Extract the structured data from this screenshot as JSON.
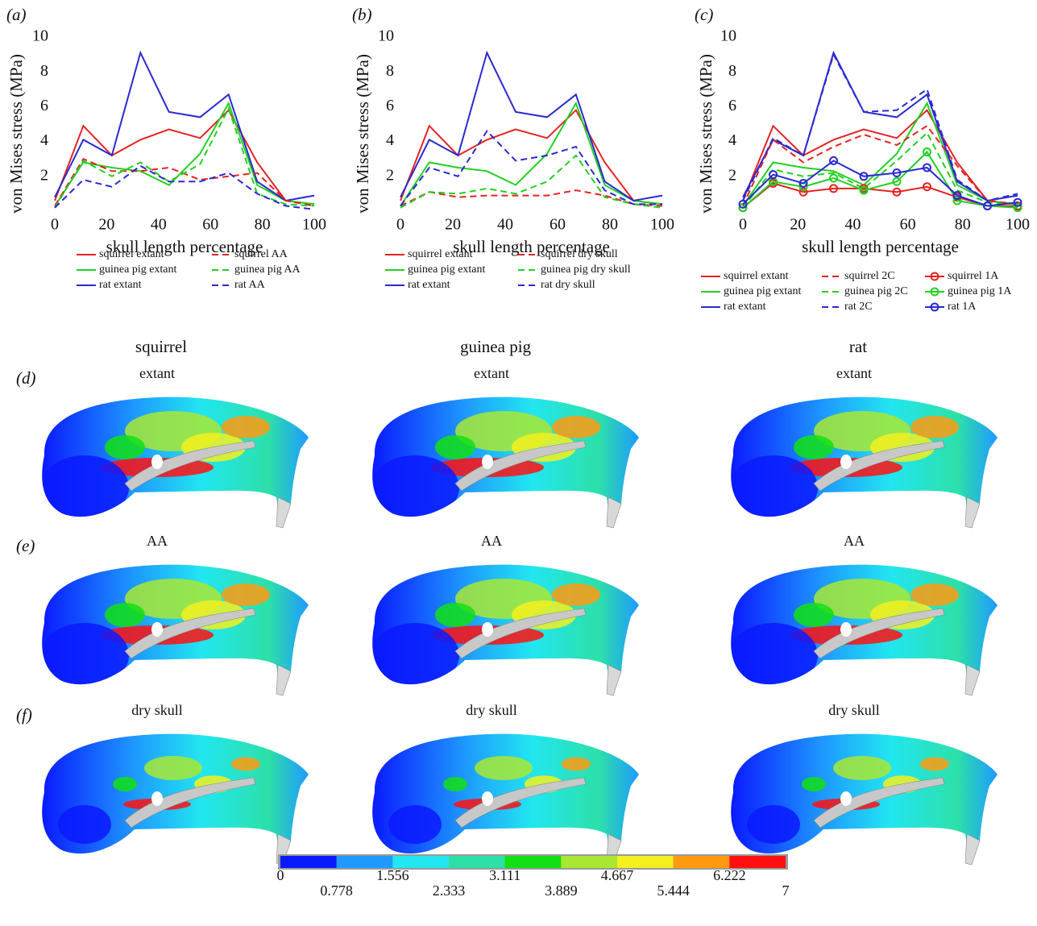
{
  "chart_data": [
    {
      "type": "line",
      "label": "(a)",
      "xlabel": "skull length percentage",
      "ylabel": "von Mises stress (MPa)",
      "x": [
        0,
        11,
        22,
        33,
        44,
        56,
        67,
        78,
        89,
        100
      ],
      "xlim": [
        0,
        100
      ],
      "xticks": [
        0,
        20,
        40,
        60,
        80,
        100
      ],
      "ylim": [
        0,
        10
      ],
      "yticks": [
        2,
        4,
        6,
        8,
        10
      ],
      "series": [
        {
          "name": "squirrel extant",
          "color": "#e52222",
          "line_style": "solid",
          "values": [
            0.6,
            4.9,
            3.2,
            4.1,
            4.7,
            4.2,
            5.8,
            2.8,
            0.6,
            0.4
          ]
        },
        {
          "name": "guinea pig extant",
          "color": "#22d022",
          "line_style": "solid",
          "values": [
            0.3,
            2.8,
            2.5,
            2.3,
            1.5,
            3.3,
            6.2,
            1.5,
            0.6,
            0.4
          ]
        },
        {
          "name": "rat extant",
          "color": "#2a2ad0",
          "line_style": "solid",
          "values": [
            0.8,
            4.1,
            3.2,
            9.1,
            5.7,
            5.4,
            6.7,
            1.7,
            0.6,
            0.9
          ]
        },
        {
          "name": "squirrel AA",
          "color": "#e52222",
          "line_style": "dashed",
          "values": [
            0.3,
            3.0,
            2.3,
            2.3,
            2.5,
            1.8,
            2.0,
            2.2,
            0.6,
            0.3
          ]
        },
        {
          "name": "guinea pig AA",
          "color": "#22d022",
          "line_style": "dashed",
          "values": [
            0.2,
            2.9,
            2.0,
            2.8,
            1.7,
            2.7,
            5.9,
            1.0,
            0.4,
            0.3
          ]
        },
        {
          "name": "rat AA",
          "color": "#2a2ad0",
          "line_style": "dashed",
          "values": [
            0.2,
            1.8,
            1.4,
            2.6,
            1.7,
            1.7,
            2.2,
            1.0,
            0.3,
            0.1
          ]
        }
      ]
    },
    {
      "type": "line",
      "label": "(b)",
      "xlabel": "skull length percentage",
      "ylabel": "von Mises stress (MPa)",
      "x": [
        0,
        11,
        22,
        33,
        44,
        56,
        67,
        78,
        89,
        100
      ],
      "xlim": [
        0,
        100
      ],
      "xticks": [
        0,
        20,
        40,
        60,
        80,
        100
      ],
      "ylim": [
        0,
        10
      ],
      "yticks": [
        2,
        4,
        6,
        8,
        10
      ],
      "series": [
        {
          "name": "squirrel extant",
          "color": "#e52222",
          "line_style": "solid",
          "values": [
            0.6,
            4.9,
            3.2,
            4.1,
            4.7,
            4.2,
            5.8,
            2.8,
            0.6,
            0.4
          ]
        },
        {
          "name": "guinea pig extant",
          "color": "#22d022",
          "line_style": "solid",
          "values": [
            0.3,
            2.8,
            2.5,
            2.3,
            1.5,
            3.3,
            6.2,
            1.5,
            0.6,
            0.4
          ]
        },
        {
          "name": "rat extant",
          "color": "#2a2ad0",
          "line_style": "solid",
          "values": [
            0.8,
            4.1,
            3.2,
            9.1,
            5.7,
            5.4,
            6.7,
            1.7,
            0.6,
            0.9
          ]
        },
        {
          "name": "squirrel dry skull",
          "color": "#e52222",
          "line_style": "dashed",
          "values": [
            0.3,
            1.1,
            0.8,
            0.9,
            0.9,
            0.9,
            1.2,
            0.9,
            0.4,
            0.3
          ]
        },
        {
          "name": "guinea pig dry skull",
          "color": "#22d022",
          "line_style": "dashed",
          "values": [
            0.2,
            1.1,
            1.0,
            1.3,
            1.0,
            1.7,
            3.2,
            0.8,
            0.4,
            0.2
          ]
        },
        {
          "name": "rat dry skull",
          "color": "#2a2ad0",
          "line_style": "dashed",
          "values": [
            0.3,
            2.5,
            2.0,
            4.6,
            2.9,
            3.2,
            3.7,
            1.2,
            0.4,
            0.4
          ]
        }
      ]
    },
    {
      "type": "line",
      "label": "(c)",
      "xlabel": "skull length percentage",
      "ylabel": "von Mises stress (MPa)",
      "x": [
        0,
        11,
        22,
        33,
        44,
        56,
        67,
        78,
        89,
        100
      ],
      "xlim": [
        0,
        100
      ],
      "xticks": [
        0,
        20,
        40,
        60,
        80,
        100
      ],
      "ylim": [
        0,
        10
      ],
      "yticks": [
        2,
        4,
        6,
        8,
        10
      ],
      "series": [
        {
          "name": "squirrel extant",
          "color": "#e52222",
          "line_style": "solid",
          "values": [
            0.6,
            4.9,
            3.2,
            4.1,
            4.7,
            4.2,
            5.8,
            2.8,
            0.6,
            0.4
          ]
        },
        {
          "name": "guinea pig extant",
          "color": "#22d022",
          "line_style": "solid",
          "values": [
            0.3,
            2.8,
            2.5,
            2.3,
            1.5,
            3.3,
            6.2,
            1.5,
            0.6,
            0.4
          ]
        },
        {
          "name": "rat extant",
          "color": "#2a2ad0",
          "line_style": "solid",
          "values": [
            0.8,
            4.1,
            3.2,
            9.1,
            5.7,
            5.4,
            6.7,
            1.7,
            0.6,
            0.9
          ]
        },
        {
          "name": "squirrel 2C",
          "color": "#e52222",
          "line_style": "dashed",
          "values": [
            0.3,
            4.1,
            2.8,
            3.7,
            4.4,
            3.8,
            4.9,
            2.6,
            0.6,
            0.4
          ]
        },
        {
          "name": "guinea pig 2C",
          "color": "#22d022",
          "line_style": "dashed",
          "values": [
            0.2,
            2.4,
            2.0,
            2.2,
            1.3,
            2.9,
            4.5,
            1.2,
            0.5,
            0.4
          ]
        },
        {
          "name": "rat 2C",
          "color": "#2a2ad0",
          "line_style": "dashed",
          "values": [
            0.6,
            4.2,
            3.2,
            9.0,
            5.7,
            5.8,
            7.0,
            1.8,
            0.6,
            1.0
          ]
        },
        {
          "name": "squirrel 1A",
          "color": "#e52222",
          "line_style": "solid",
          "marker": "circle",
          "values": [
            0.2,
            1.6,
            1.1,
            1.3,
            1.3,
            1.1,
            1.4,
            0.8,
            0.3,
            0.3
          ]
        },
        {
          "name": "guinea pig 1A",
          "color": "#22d022",
          "line_style": "solid",
          "marker": "circle",
          "values": [
            0.2,
            1.7,
            1.4,
            1.9,
            1.2,
            1.7,
            3.4,
            0.6,
            0.3,
            0.2
          ]
        },
        {
          "name": "rat 1A",
          "color": "#2a2ad0",
          "line_style": "solid",
          "marker": "circle",
          "values": [
            0.4,
            2.1,
            1.6,
            2.9,
            2.0,
            2.2,
            2.5,
            0.9,
            0.3,
            0.5
          ]
        }
      ]
    }
  ],
  "skull_panels": {
    "columns": [
      "squirrel",
      "guinea pig",
      "rat"
    ],
    "rows": [
      {
        "label": "(d)",
        "captions": [
          "extant",
          "extant",
          "extant"
        ]
      },
      {
        "label": "(e)",
        "captions": [
          "AA",
          "AA",
          "AA"
        ]
      },
      {
        "label": "(f)",
        "captions": [
          "dry skull",
          "dry skull",
          "dry skull"
        ]
      }
    ]
  },
  "colorbar": {
    "ticks": [
      0,
      0.778,
      1.556,
      2.333,
      3.111,
      3.889,
      4.667,
      5.444,
      6.222,
      7
    ],
    "colors": [
      "#0a1aff",
      "#1e9aff",
      "#22e6f0",
      "#2de0a8",
      "#12e012",
      "#a8e832",
      "#f5f01e",
      "#ff9a10",
      "#ff1010"
    ]
  }
}
